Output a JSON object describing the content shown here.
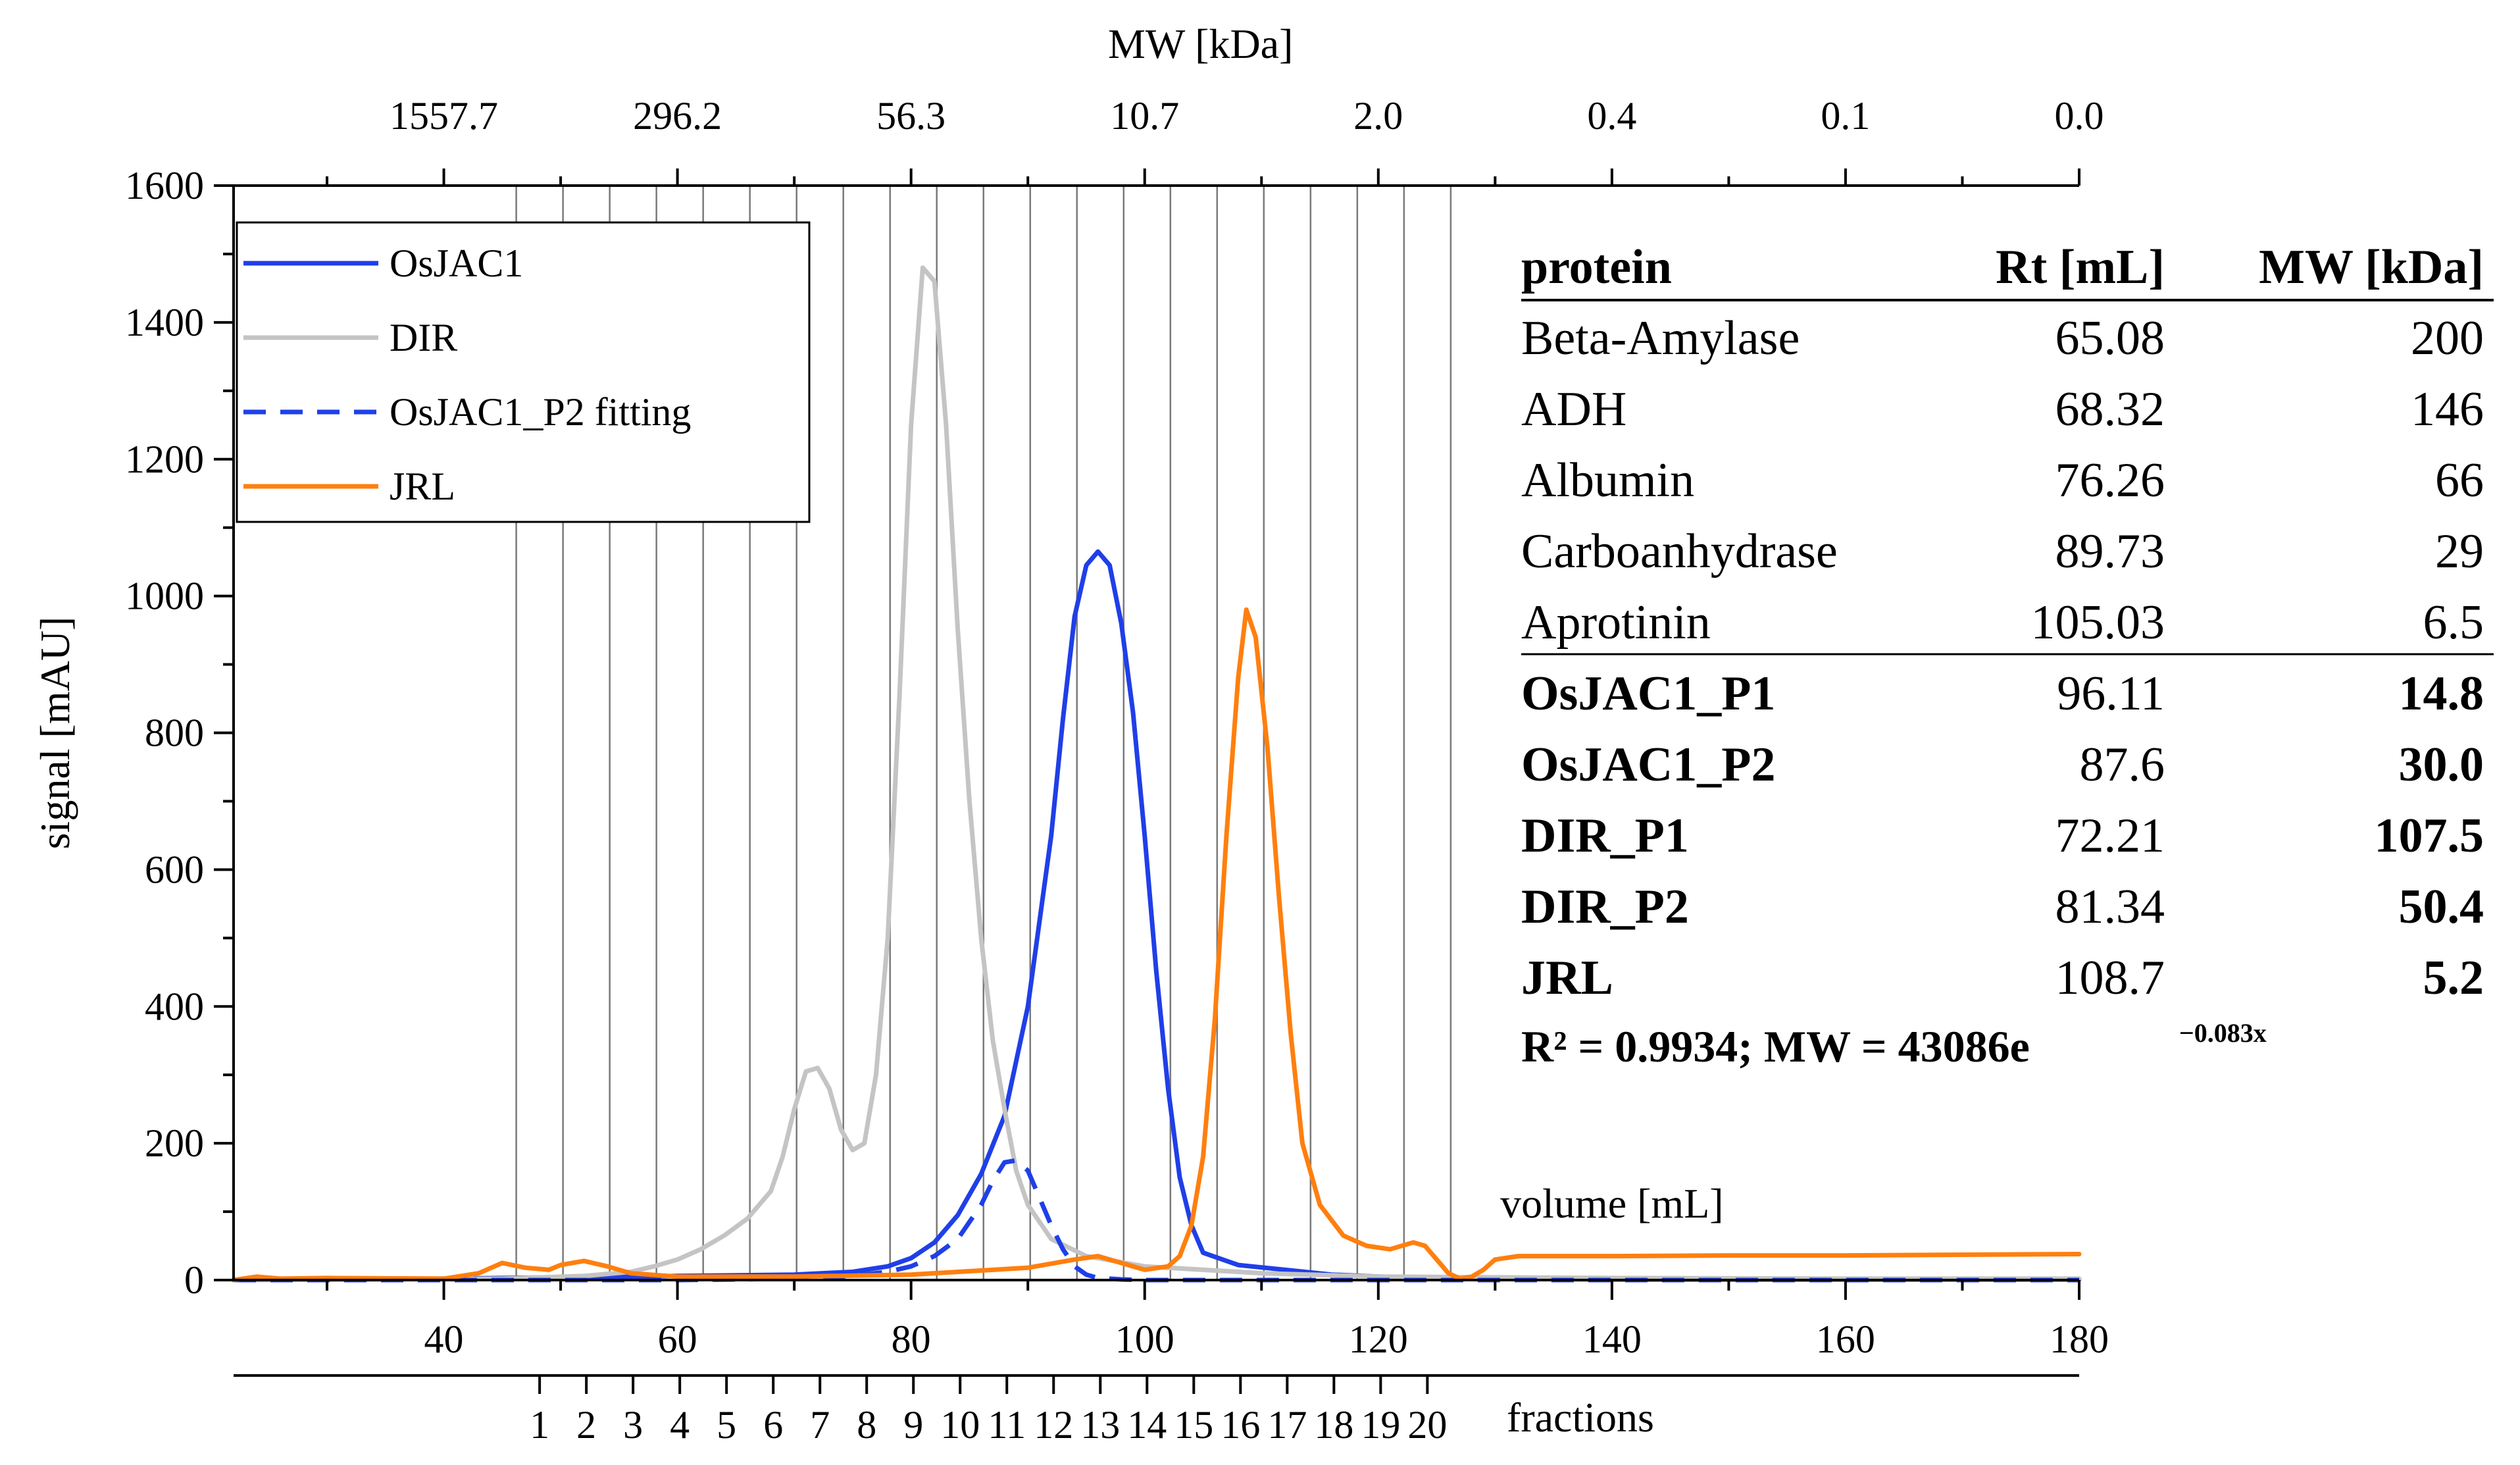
{
  "chart_data": {
    "type": "line",
    "xlabel": "volume [mL]",
    "ylabel": "signal [mAU]",
    "top_axis_label": "MW [kDa]",
    "fractions_label": "fractions",
    "xlim": [
      22,
      180
    ],
    "ylim": [
      0,
      1600
    ],
    "x_ticks": [
      40,
      60,
      80,
      100,
      120,
      140,
      160,
      180
    ],
    "y_ticks": [
      0,
      200,
      400,
      600,
      800,
      1000,
      1200,
      1400,
      1600
    ],
    "top_ticks": [
      {
        "x": 40,
        "label": "1557.7"
      },
      {
        "x": 60,
        "label": "296.2"
      },
      {
        "x": 80,
        "label": "56.3"
      },
      {
        "x": 100,
        "label": "10.7"
      },
      {
        "x": 120,
        "label": "2.0"
      },
      {
        "x": 140,
        "label": "0.4"
      },
      {
        "x": 160,
        "label": "0.1"
      },
      {
        "x": 180,
        "label": "0.0"
      }
    ],
    "fractions": [
      {
        "label": "1",
        "x": 48.2
      },
      {
        "label": "2",
        "x": 52.2
      },
      {
        "label": "3",
        "x": 56.2
      },
      {
        "label": "4",
        "x": 60.2
      },
      {
        "label": "5",
        "x": 64.2
      },
      {
        "label": "6",
        "x": 68.2
      },
      {
        "label": "7",
        "x": 72.2
      },
      {
        "label": "8",
        "x": 76.2
      },
      {
        "label": "9",
        "x": 80.2
      },
      {
        "label": "10",
        "x": 84.2
      },
      {
        "label": "11",
        "x": 88.2
      },
      {
        "label": "12",
        "x": 92.2
      },
      {
        "label": "13",
        "x": 96.2
      },
      {
        "label": "14",
        "x": 100.2
      },
      {
        "label": "15",
        "x": 104.2
      },
      {
        "label": "16",
        "x": 108.2
      },
      {
        "label": "17",
        "x": 112.2
      },
      {
        "label": "18",
        "x": 116.2
      },
      {
        "label": "19",
        "x": 120.2
      },
      {
        "label": "20",
        "x": 124.2
      }
    ],
    "grid": false,
    "legend_position": "top-left",
    "series": [
      {
        "name": "OsJAC1",
        "color": "#1f3fe8",
        "dash": false,
        "x": [
          22,
          40,
          50,
          60,
          70,
          75,
          78,
          80,
          82,
          84,
          86,
          88,
          90,
          92,
          93,
          94,
          95,
          96,
          97,
          98,
          99,
          100,
          101,
          102,
          103,
          104,
          105,
          108,
          112,
          116,
          120,
          125,
          130,
          140,
          160,
          180
        ],
        "y": [
          0,
          2,
          4,
          6,
          8,
          12,
          20,
          32,
          55,
          95,
          155,
          240,
          400,
          650,
          820,
          970,
          1045,
          1065,
          1045,
          960,
          830,
          650,
          450,
          280,
          150,
          80,
          40,
          22,
          15,
          8,
          5,
          3,
          2,
          1,
          1,
          1
        ]
      },
      {
        "name": "DIR",
        "color": "#c4c4c4",
        "dash": false,
        "x": [
          22,
          45,
          52,
          56,
          58,
          60,
          62,
          64,
          66,
          68,
          69,
          70,
          71,
          72,
          73,
          74,
          75,
          76,
          77,
          78,
          79,
          80,
          81,
          82,
          83,
          84,
          85,
          86,
          87,
          88,
          89,
          90,
          92,
          95,
          100,
          110,
          120,
          140,
          160,
          180
        ],
        "y": [
          0,
          2,
          6,
          12,
          20,
          30,
          45,
          65,
          90,
          130,
          180,
          250,
          305,
          310,
          280,
          220,
          190,
          200,
          300,
          500,
          850,
          1250,
          1480,
          1460,
          1250,
          950,
          700,
          500,
          350,
          250,
          160,
          110,
          60,
          35,
          20,
          10,
          5,
          3,
          2,
          2
        ]
      },
      {
        "name": "OsJAC1_P2 fitting",
        "color": "#1f3fe8",
        "dash": true,
        "x": [
          22,
          60,
          70,
          75,
          78,
          80,
          82,
          84,
          86,
          87,
          88,
          89,
          90,
          91,
          92,
          93,
          94,
          95,
          96,
          98,
          100,
          120,
          140,
          160,
          180
        ],
        "y": [
          0,
          0,
          2,
          6,
          12,
          20,
          35,
          60,
          110,
          145,
          172,
          175,
          160,
          120,
          80,
          45,
          20,
          8,
          3,
          1,
          0,
          0,
          0,
          0,
          0
        ]
      },
      {
        "name": "JRL",
        "color": "#ff7f0e",
        "dash": false,
        "x": [
          22,
          24,
          26,
          30,
          40,
          43,
          45,
          47,
          49,
          50,
          52,
          54,
          56,
          60,
          70,
          80,
          90,
          94,
          96,
          98,
          100,
          102,
          103,
          104,
          105,
          106,
          107,
          108,
          108.7,
          109.5,
          110.5,
          111.5,
          112.5,
          113.5,
          115,
          117,
          119,
          121,
          123,
          124,
          125,
          126,
          127,
          128,
          129,
          130,
          132,
          140,
          150,
          160,
          170,
          180
        ],
        "y": [
          0,
          5,
          2,
          3,
          2,
          10,
          25,
          18,
          15,
          22,
          28,
          20,
          10,
          5,
          5,
          8,
          18,
          30,
          35,
          25,
          15,
          20,
          35,
          80,
          180,
          380,
          650,
          880,
          980,
          940,
          780,
          560,
          360,
          200,
          110,
          65,
          50,
          45,
          55,
          50,
          30,
          10,
          2,
          5,
          15,
          30,
          35,
          35,
          36,
          36,
          37,
          38
        ]
      }
    ]
  },
  "table": {
    "headers": [
      "protein",
      "Rt [mL]",
      "MW [kDa]"
    ],
    "rows": [
      {
        "protein": "Beta-Amylase",
        "rt": "65.08",
        "mw": "200",
        "bold": false
      },
      {
        "protein": "ADH",
        "rt": "68.32",
        "mw": "146",
        "bold": false
      },
      {
        "protein": "Albumin",
        "rt": "76.26",
        "mw": "66",
        "bold": false
      },
      {
        "protein": "Carboanhydrase",
        "rt": "89.73",
        "mw": "29",
        "bold": false
      },
      {
        "protein": "Aprotinin",
        "rt": "105.03",
        "mw": "6.5",
        "bold": false
      },
      {
        "protein": "OsJAC1_P1",
        "rt": "96.11",
        "mw": "14.8",
        "bold": true
      },
      {
        "protein": "OsJAC1_P2",
        "rt": "87.6",
        "mw": "30.0",
        "bold": true
      },
      {
        "protein": "DIR_P1",
        "rt": "72.21",
        "mw": "107.5",
        "bold": true
      },
      {
        "protein": "DIR_P2",
        "rt": "81.34",
        "mw": "50.4",
        "bold": true
      },
      {
        "protein": "JRL",
        "rt": "108.7",
        "mw": "5.2",
        "bold": true
      }
    ],
    "equation_main": "R² = 0.9934; MW = 43086e",
    "equation_exponent": "−0.083x"
  }
}
